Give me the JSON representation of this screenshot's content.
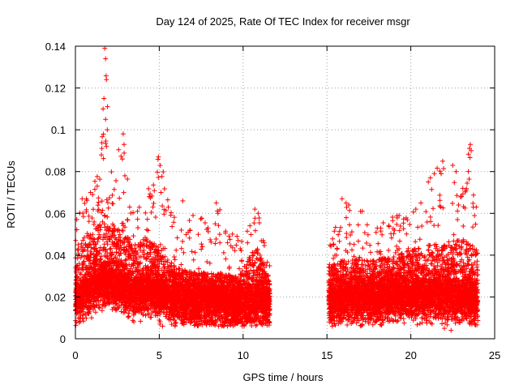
{
  "chart_data": {
    "type": "scatter",
    "title": "Day 124 of 2025, Rate Of TEC Index for receiver msgr",
    "xlabel": "GPS time / hours",
    "ylabel": "ROTI / TECUs",
    "xlim": [
      0,
      25
    ],
    "ylim": [
      0,
      0.14
    ],
    "xticks": [
      0,
      5,
      10,
      15,
      20,
      25
    ],
    "xtick_labels": [
      "0",
      "5",
      "10",
      "15",
      "20",
      "25"
    ],
    "yticks": [
      0,
      0.02,
      0.04,
      0.06,
      0.08,
      0.1,
      0.12,
      0.14
    ],
    "ytick_labels": [
      "0",
      "0.02",
      "0.04",
      "0.06",
      "0.08",
      "0.1",
      "0.12",
      "0.14"
    ],
    "grid": true,
    "marker": "+",
    "color": "#ff0000",
    "data_gap_hours": [
      11.7,
      15.1
    ],
    "series": [
      {
        "name": "ROTI",
        "envelope": [
          {
            "x": 0.0,
            "base": 0.018,
            "upper": 0.042,
            "peak": 0.055
          },
          {
            "x": 0.5,
            "base": 0.022,
            "upper": 0.048,
            "peak": 0.068
          },
          {
            "x": 1.0,
            "base": 0.024,
            "upper": 0.052,
            "peak": 0.072
          },
          {
            "x": 1.5,
            "base": 0.026,
            "upper": 0.056,
            "peak": 0.09
          },
          {
            "x": 1.8,
            "base": 0.027,
            "upper": 0.06,
            "peak": 0.138
          },
          {
            "x": 2.2,
            "base": 0.026,
            "upper": 0.055,
            "peak": 0.08
          },
          {
            "x": 2.8,
            "base": 0.024,
            "upper": 0.052,
            "peak": 0.098
          },
          {
            "x": 3.5,
            "base": 0.022,
            "upper": 0.046,
            "peak": 0.06
          },
          {
            "x": 4.2,
            "base": 0.022,
            "upper": 0.048,
            "peak": 0.068
          },
          {
            "x": 5.0,
            "base": 0.021,
            "upper": 0.044,
            "peak": 0.088
          },
          {
            "x": 6.0,
            "base": 0.018,
            "upper": 0.034,
            "peak": 0.06
          },
          {
            "x": 7.0,
            "base": 0.017,
            "upper": 0.032,
            "peak": 0.062
          },
          {
            "x": 8.4,
            "base": 0.017,
            "upper": 0.032,
            "peak": 0.066
          },
          {
            "x": 9.5,
            "base": 0.016,
            "upper": 0.03,
            "peak": 0.048
          },
          {
            "x": 10.8,
            "base": 0.018,
            "upper": 0.044,
            "peak": 0.063
          },
          {
            "x": 11.6,
            "base": 0.017,
            "upper": 0.03,
            "peak": 0.04
          },
          {
            "x": 15.1,
            "base": 0.018,
            "upper": 0.034,
            "peak": 0.045
          },
          {
            "x": 16.0,
            "base": 0.019,
            "upper": 0.038,
            "peak": 0.067
          },
          {
            "x": 17.0,
            "base": 0.019,
            "upper": 0.038,
            "peak": 0.062
          },
          {
            "x": 18.0,
            "base": 0.019,
            "upper": 0.038,
            "peak": 0.055
          },
          {
            "x": 19.2,
            "base": 0.02,
            "upper": 0.04,
            "peak": 0.06
          },
          {
            "x": 20.5,
            "base": 0.021,
            "upper": 0.044,
            "peak": 0.066
          },
          {
            "x": 21.5,
            "base": 0.021,
            "upper": 0.046,
            "peak": 0.085
          },
          {
            "x": 22.3,
            "base": 0.02,
            "upper": 0.048,
            "peak": 0.083
          },
          {
            "x": 23.0,
            "base": 0.019,
            "upper": 0.048,
            "peak": 0.07
          },
          {
            "x": 23.5,
            "base": 0.019,
            "upper": 0.046,
            "peak": 0.093
          },
          {
            "x": 24.0,
            "base": 0.018,
            "upper": 0.042,
            "peak": 0.064
          }
        ],
        "spikes": [
          {
            "x": 1.75,
            "y": 0.139
          },
          {
            "x": 1.8,
            "y": 0.134
          },
          {
            "x": 1.85,
            "y": 0.124
          },
          {
            "x": 1.7,
            "y": 0.115
          },
          {
            "x": 1.65,
            "y": 0.11
          },
          {
            "x": 1.8,
            "y": 0.105
          },
          {
            "x": 1.9,
            "y": 0.1
          },
          {
            "x": 1.55,
            "y": 0.088
          },
          {
            "x": 1.85,
            "y": 0.092
          },
          {
            "x": 2.85,
            "y": 0.098
          },
          {
            "x": 2.9,
            "y": 0.093
          },
          {
            "x": 2.8,
            "y": 0.086
          },
          {
            "x": 2.95,
            "y": 0.078
          },
          {
            "x": 4.95,
            "y": 0.087
          },
          {
            "x": 5.05,
            "y": 0.083
          },
          {
            "x": 5.1,
            "y": 0.07
          },
          {
            "x": 4.4,
            "y": 0.068
          },
          {
            "x": 3.7,
            "y": 0.061
          },
          {
            "x": 0.4,
            "y": 0.067
          },
          {
            "x": 0.9,
            "y": 0.07
          },
          {
            "x": 1.3,
            "y": 0.073
          },
          {
            "x": 6.4,
            "y": 0.066
          },
          {
            "x": 8.4,
            "y": 0.065
          },
          {
            "x": 8.5,
            "y": 0.06
          },
          {
            "x": 10.7,
            "y": 0.062
          },
          {
            "x": 10.9,
            "y": 0.06
          },
          {
            "x": 9.7,
            "y": 0.047
          },
          {
            "x": 15.9,
            "y": 0.067
          },
          {
            "x": 16.3,
            "y": 0.064
          },
          {
            "x": 17.0,
            "y": 0.061
          },
          {
            "x": 18.0,
            "y": 0.053
          },
          {
            "x": 19.3,
            "y": 0.059
          },
          {
            "x": 20.3,
            "y": 0.062
          },
          {
            "x": 20.6,
            "y": 0.065
          },
          {
            "x": 21.4,
            "y": 0.079
          },
          {
            "x": 21.9,
            "y": 0.085
          },
          {
            "x": 22.5,
            "y": 0.083
          },
          {
            "x": 22.7,
            "y": 0.08
          },
          {
            "x": 23.1,
            "y": 0.072
          },
          {
            "x": 23.55,
            "y": 0.093
          },
          {
            "x": 23.6,
            "y": 0.09
          },
          {
            "x": 23.9,
            "y": 0.063
          },
          {
            "x": 22.0,
            "y": 0.005
          },
          {
            "x": 22.4,
            "y": 0.004
          },
          {
            "x": 5.2,
            "y": 0.006
          }
        ]
      }
    ]
  }
}
